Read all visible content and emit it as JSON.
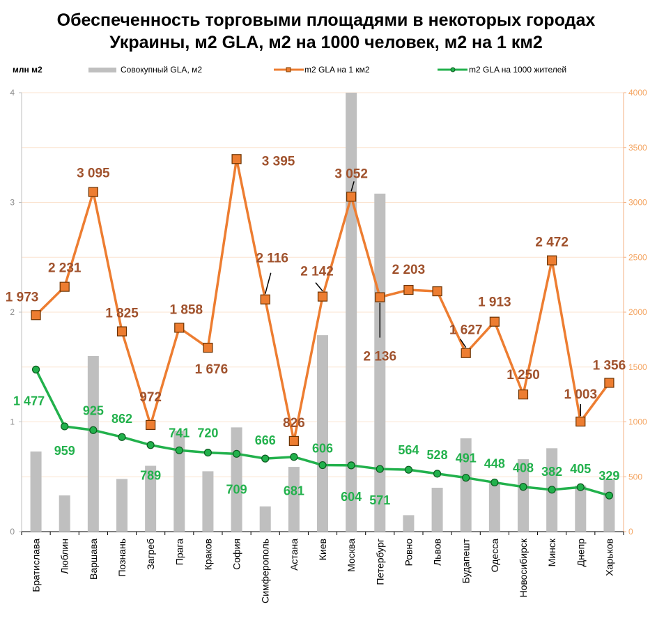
{
  "chart_data": {
    "type": "bar+line",
    "title_line1": "Обеспеченность торговыми площадями в некоторых городах",
    "title_line2": "Украины, м2 GLA, м2 на 1000 человек, м2 на 1 км2",
    "y_left_unit": "млн м2",
    "y_left_lim": [
      0,
      4
    ],
    "y_left_ticks": [
      "0",
      "1",
      "2",
      "3",
      "4"
    ],
    "y_right_lim": [
      0,
      4000
    ],
    "y_right_ticks": [
      "0",
      "500",
      "1000",
      "1500",
      "2000",
      "2500",
      "3000",
      "3500",
      "4000"
    ],
    "legend_position": "top",
    "categories": [
      "Братислава",
      "Люблин",
      "Варшава",
      "Познань",
      "Загреб",
      "Прага",
      "Краков",
      "София",
      "Симферополь",
      "Астана",
      "Киев",
      "Москва",
      "Петербург",
      "Ровно",
      "Львов",
      "Будапешт",
      "Одесса",
      "Новосибирск",
      "Минск",
      "Днепр",
      "Харьков"
    ],
    "series": [
      {
        "name": "Совокупный GLA, м2",
        "kind": "bar",
        "axis": "left",
        "color": "#bfbfbf",
        "values": [
          0.73,
          0.33,
          1.6,
          0.48,
          0.6,
          0.92,
          0.55,
          0.95,
          0.23,
          0.59,
          1.79,
          4.0,
          3.08,
          0.15,
          0.4,
          0.85,
          0.45,
          0.66,
          0.76,
          0.42,
          0.48
        ]
      },
      {
        "name": "m2 GLA на 1 км2",
        "kind": "line",
        "axis": "right",
        "color": "#ed7d31",
        "marker": "square",
        "values": [
          1973,
          2231,
          3095,
          1825,
          972,
          1858,
          1676,
          3395,
          2116,
          826,
          2142,
          3052,
          2136,
          2203,
          2190,
          1627,
          1913,
          1250,
          2472,
          1003,
          1356
        ],
        "labels": [
          "1 973",
          "2 231",
          "3 095",
          "1 825",
          "972",
          "1 858",
          "1 676",
          "3 395",
          "2 116",
          "826",
          "2 142",
          "3 052",
          "2 136",
          "2 203",
          "",
          "1 627",
          "1 913",
          "1 250",
          "2 472",
          "1 003",
          "1 356"
        ]
      },
      {
        "name": "m2 GLA на 1000 жителей",
        "kind": "line",
        "axis": "right",
        "color": "#22b14c",
        "marker": "circle",
        "values": [
          1477,
          959,
          925,
          862,
          789,
          741,
          720,
          709,
          666,
          681,
          606,
          604,
          571,
          564,
          528,
          491,
          448,
          408,
          382,
          405,
          329
        ],
        "labels": [
          "1 477",
          "959",
          "925",
          "862",
          "789",
          "741",
          "720",
          "709",
          "666",
          "681",
          "606",
          "604",
          "571",
          "564",
          "528",
          "491",
          "448",
          "408",
          "382",
          "405",
          "329"
        ]
      }
    ]
  }
}
